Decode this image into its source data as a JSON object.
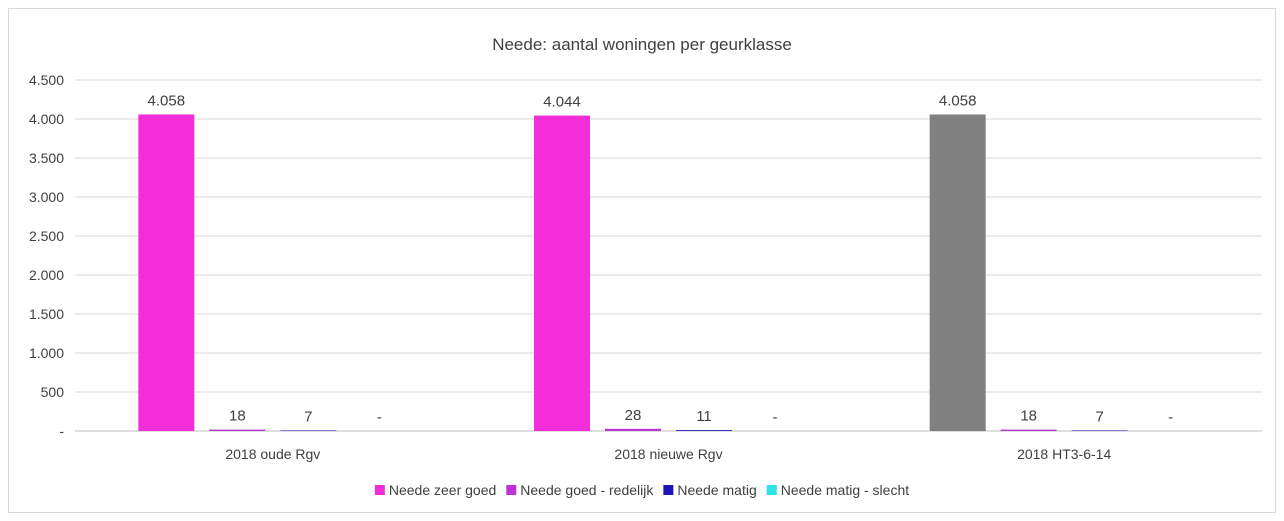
{
  "chart_data": {
    "type": "bar",
    "title": "Neede: aantal woningen per geurklasse",
    "xlabel": "",
    "ylabel": "",
    "ylim": [
      0,
      4500
    ],
    "yticks": [
      0,
      500,
      1000,
      1500,
      2000,
      2500,
      3000,
      3500,
      4000,
      4500
    ],
    "ytick_labels": [
      "-",
      "500",
      "1.000",
      "1.500",
      "2.000",
      "2.500",
      "3.000",
      "3.500",
      "4.000",
      "4.500"
    ],
    "grid": true,
    "legend_position": "bottom",
    "categories": [
      "2018 oude Rgv",
      "2018 nieuwe Rgv",
      "2018 HT3-6-14"
    ],
    "series": [
      {
        "name": "Neede zeer goed",
        "color": "#f32ed8",
        "values": [
          4058,
          4044,
          4058
        ],
        "labels": [
          "4.058",
          "4.044",
          "4.058"
        ]
      },
      {
        "name": "Neede goed - redelijk",
        "color": "#b936d0",
        "values": [
          18,
          28,
          18
        ],
        "labels": [
          "18",
          "28",
          "18"
        ]
      },
      {
        "name": "Neede matig",
        "color": "#1c13b9",
        "values": [
          7,
          11,
          7
        ],
        "labels": [
          "7",
          "11",
          "7"
        ]
      },
      {
        "name": "Neede matig - slecht",
        "color": "#2fe3e6",
        "values": [
          0,
          0,
          0
        ],
        "labels": [
          "-",
          "-",
          "-"
        ]
      }
    ],
    "highlight": {
      "category_index": 2,
      "series_index": 0,
      "color": "#808080"
    }
  }
}
